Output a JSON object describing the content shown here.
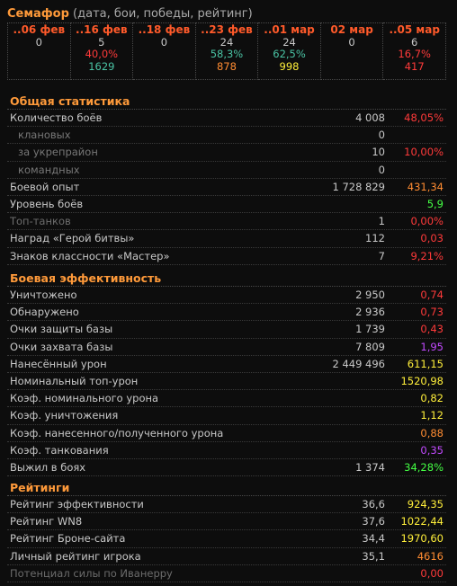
{
  "semafor": {
    "title": "Семафор",
    "subtitle": "(дата, бои, победы, рейтинг)",
    "columns": [
      {
        "date": "..06 фев",
        "battles": "0",
        "pct": "",
        "rating": ""
      },
      {
        "date": "..16 фев",
        "battles": "5",
        "pct": "40,0%",
        "rating": "1629",
        "pct_color": "#ff3a3a",
        "rating_color": "#4ac3a4"
      },
      {
        "date": "..18 фев",
        "battles": "0",
        "pct": "",
        "rating": ""
      },
      {
        "date": "..23 фев",
        "battles": "24",
        "pct": "58,3%",
        "rating": "878",
        "pct_color": "#4ac3a4",
        "rating_color": "#ff8c32"
      },
      {
        "date": "..01 мар",
        "battles": "24",
        "pct": "62,5%",
        "rating": "998",
        "pct_color": "#4ac3a4",
        "rating_color": "#ffef3a"
      },
      {
        "date": "02 мар",
        "battles": "0",
        "pct": "",
        "rating": ""
      },
      {
        "date": "..05 мар",
        "battles": "6",
        "pct": "16,7%",
        "rating": "417",
        "pct_color": "#ff3a3a",
        "rating_color": "#ff3a3a"
      }
    ]
  },
  "general": {
    "title": "Общая статистика",
    "rows": [
      {
        "label": "Количество боёв",
        "value": "4 008",
        "pct": "48,05%",
        "pct_class": "red",
        "label_class": ""
      },
      {
        "label": "клановых",
        "value": "0",
        "pct": "",
        "pct_class": "",
        "label_class": "sub"
      },
      {
        "label": "за укрепрайон",
        "value": "10",
        "pct": "10,00%",
        "pct_class": "red",
        "label_class": "sub"
      },
      {
        "label": "командных",
        "value": "0",
        "pct": "",
        "pct_class": "",
        "label_class": "sub"
      },
      {
        "label": "Боевой опыт",
        "value": "1 728 829",
        "pct": "431,34",
        "pct_class": "orange",
        "label_class": ""
      },
      {
        "label": "Уровень боёв",
        "value": "",
        "pct": "5,9",
        "pct_class": "green",
        "label_class": ""
      },
      {
        "label": "Топ-танков",
        "value": "1",
        "pct": "0,00%",
        "pct_class": "red",
        "label_class": "dim"
      },
      {
        "label": "Наград «Герой битвы»",
        "value": "112",
        "pct": "0,03",
        "pct_class": "red",
        "label_class": ""
      },
      {
        "label": "Знаков классности «Мастер»",
        "value": "7",
        "pct": "9,21%",
        "pct_class": "red",
        "label_class": ""
      }
    ]
  },
  "efficiency": {
    "title": "Боевая эффективность",
    "rows": [
      {
        "label": "Уничтожено",
        "value": "2 950",
        "pct": "0,74",
        "pct_class": "red"
      },
      {
        "label": "Обнаружено",
        "value": "2 936",
        "pct": "0,73",
        "pct_class": "red"
      },
      {
        "label": "Очки защиты базы",
        "value": "1 739",
        "pct": "0,43",
        "pct_class": "red"
      },
      {
        "label": "Очки захвата базы",
        "value": "7 809",
        "pct": "1,95",
        "pct_class": "purple"
      },
      {
        "label": "Нанесённый урон",
        "value": "2 449 496",
        "pct": "611,15",
        "pct_class": "yellow"
      },
      {
        "label": "Номинальный топ-урон",
        "value": "",
        "pct": "1520,98",
        "pct_class": "yellow"
      },
      {
        "label": "Коэф. номинального урона",
        "value": "",
        "pct": "0,82",
        "pct_class": "yellow"
      },
      {
        "label": "Коэф. уничтожения",
        "value": "",
        "pct": "1,12",
        "pct_class": "yellow"
      },
      {
        "label": "Коэф. нанесенного/полученного урона",
        "value": "",
        "pct": "0,88",
        "pct_class": "orange"
      },
      {
        "label": "Коэф. танкования",
        "value": "",
        "pct": "0,35",
        "pct_class": "purple"
      },
      {
        "label": "Выжил в боях",
        "value": "1 374",
        "pct": "34,28%",
        "pct_class": "green"
      }
    ]
  },
  "ratings": {
    "title": "Рейтинги",
    "rows": [
      {
        "label": "Рейтинг эффективности",
        "value": "36,6",
        "pct": "924,35",
        "pct_class": "yellow",
        "label_class": ""
      },
      {
        "label": "Рейтинг WN8",
        "value": "37,6",
        "pct": "1022,44",
        "pct_class": "yellow",
        "label_class": ""
      },
      {
        "label": "Рейтинг Броне-сайта",
        "value": "34,4",
        "pct": "1970,60",
        "pct_class": "yellow",
        "label_class": ""
      },
      {
        "label": "Личный рейтинг игрока",
        "value": "35,1",
        "pct": "4616",
        "pct_class": "orange",
        "label_class": ""
      },
      {
        "label": "Потенциал силы по Иванерру",
        "value": "",
        "pct": "0,00",
        "pct_class": "red",
        "label_class": "dim"
      }
    ]
  }
}
